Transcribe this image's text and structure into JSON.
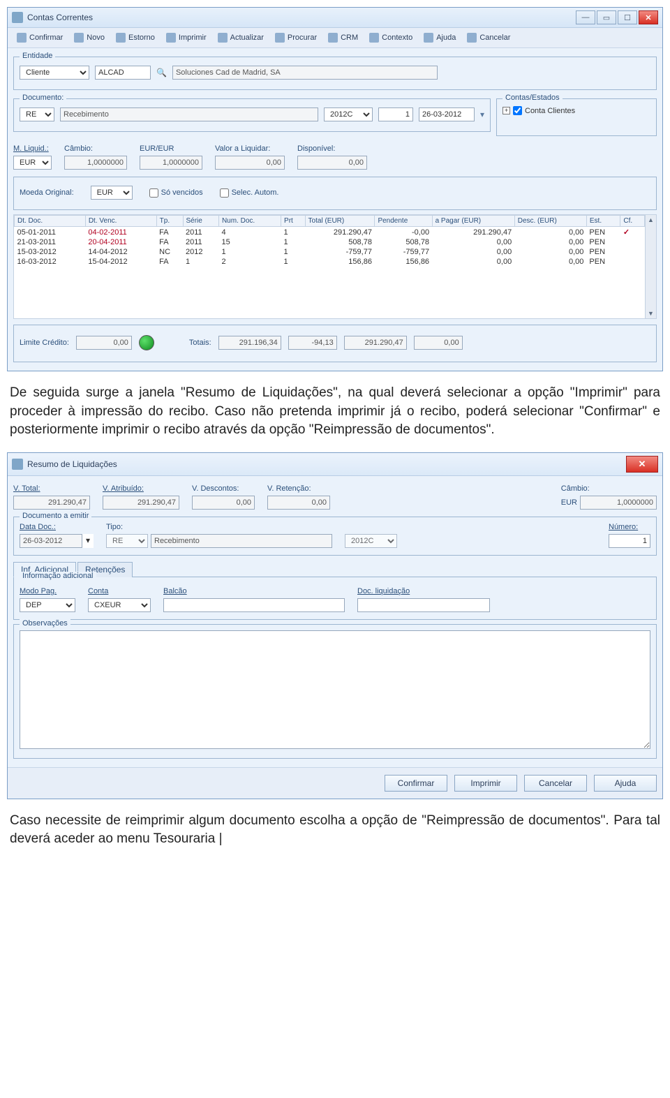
{
  "win1": {
    "title": "Contas Correntes",
    "toolbar": [
      {
        "icon": "confirm-icon",
        "label": "Confirmar"
      },
      {
        "icon": "new-icon",
        "label": "Novo"
      },
      {
        "icon": "estorno-icon",
        "label": "Estorno"
      },
      {
        "icon": "print-icon",
        "label": "Imprimir"
      },
      {
        "icon": "refresh-icon",
        "label": "Actualizar"
      },
      {
        "icon": "search-icon",
        "label": "Procurar"
      },
      {
        "icon": "crm-icon",
        "label": "CRM"
      },
      {
        "icon": "context-icon",
        "label": "Contexto"
      },
      {
        "icon": "help-icon",
        "label": "Ajuda"
      },
      {
        "icon": "cancel-icon",
        "label": "Cancelar"
      }
    ],
    "entidade": {
      "legend": "Entidade",
      "tipo": "Cliente",
      "codigo": "ALCAD",
      "nome": "Soluciones Cad de Madrid, SA"
    },
    "documento": {
      "legend": "Documento:",
      "tipo": "RE",
      "desc": "Recebimento",
      "periodo": "2012C",
      "num": "1",
      "data": "26-03-2012"
    },
    "contas_estados": {
      "legend": "Contas/Estados",
      "item": "Conta Clientes"
    },
    "liquid": {
      "mliquid_lbl": "M. Liquid.:",
      "moeda": "EUR",
      "cambio_lbl": "Câmbio:",
      "cambio": "1,0000000",
      "eur_eur_lbl": "EUR/EUR",
      "eur_eur": "1,0000000",
      "valor_lbl": "Valor a Liquidar:",
      "valor": "0,00",
      "disp_lbl": "Disponível:",
      "disp": "0,00"
    },
    "filtros": {
      "moeda_orig_lbl": "Moeda Original:",
      "moeda_orig": "EUR",
      "so_venc": "Só vencidos",
      "selec_autom": "Selec. Autom."
    },
    "grid": {
      "headers": [
        "Dt. Doc.",
        "Dt. Venc.",
        "Tp.",
        "Série",
        "Num. Doc.",
        "Prt",
        "Total (EUR)",
        "Pendente",
        "a Pagar (EUR)",
        "Desc. (EUR)",
        "Est.",
        "Cf."
      ],
      "rows": [
        {
          "c": [
            "05-01-2011",
            "04-02-2011",
            "FA",
            "2011",
            "4",
            "1",
            "291.290,47",
            "-0,00",
            "291.290,47",
            "0,00",
            "PEN",
            "✓"
          ],
          "venc_red": true,
          "cf": true
        },
        {
          "c": [
            "21-03-2011",
            "20-04-2011",
            "FA",
            "2011",
            "15",
            "1",
            "508,78",
            "508,78",
            "0,00",
            "0,00",
            "PEN",
            ""
          ],
          "venc_red": true
        },
        {
          "c": [
            "15-03-2012",
            "14-04-2012",
            "NC",
            "2012",
            "1",
            "1",
            "-759,77",
            "-759,77",
            "0,00",
            "0,00",
            "PEN",
            ""
          ]
        },
        {
          "c": [
            "16-03-2012",
            "15-04-2012",
            "FA",
            "1",
            "2",
            "1",
            "156,86",
            "156,86",
            "0,00",
            "0,00",
            "PEN",
            ""
          ]
        }
      ]
    },
    "totais": {
      "limite_lbl": "Limite Crédito:",
      "limite": "0,00",
      "totais_lbl": "Totais:",
      "t1": "291.196,34",
      "t2": "-94,13",
      "t3": "291.290,47",
      "t4": "0,00"
    }
  },
  "para1": "De seguida surge a janela \"Resumo de Liquidações\", na qual deverá selecionar a opção \"Imprimir\" para proceder à impressão do recibo. Caso não pretenda imprimir já o recibo, poderá selecionar \"Confirmar\" e posteriormente imprimir o recibo através da opção \"Reimpressão de documentos\".",
  "win2": {
    "title": "Resumo de Liquidações",
    "header": {
      "vtotal_lbl": "V. Total:",
      "vtotal": "291.290,47",
      "vatr_lbl": "V. Atribuído:",
      "vatr": "291.290,47",
      "vdesc_lbl": "V. Descontos:",
      "vdesc": "0,00",
      "vret_lbl": "V. Retenção:",
      "vret": "0,00",
      "cambio_lbl": "Câmbio:",
      "moeda": "EUR",
      "cambio": "1,0000000"
    },
    "doc": {
      "legend": "Documento a emitir",
      "data_lbl": "Data Doc.:",
      "data": "26-03-2012",
      "tipo_lbl": "Tipo:",
      "tipo": "RE",
      "tipo_desc": "Recebimento",
      "periodo": "2012C",
      "numero_lbl": "Número:",
      "numero": "1"
    },
    "tabs": {
      "t1": "Inf. Adicional",
      "t2": "Retenções"
    },
    "infoad": {
      "legend": "Informação adicional",
      "modo_lbl": "Modo Pag.",
      "modo": "DEP",
      "conta_lbl": "Conta",
      "conta": "CXEUR",
      "balcao_lbl": "Balcão",
      "balcao": "",
      "docliq_lbl": "Doc. liquidação",
      "docliq": ""
    },
    "obs_legend": "Observações",
    "buttons": {
      "confirmar": "Confirmar",
      "imprimir": "Imprimir",
      "cancelar": "Cancelar",
      "ajuda": "Ajuda"
    }
  },
  "para2": "Caso necessite de reimprimir algum documento escolha a opção de \"Reimpressão de documentos\". Para tal deverá aceder ao menu Tesouraria |"
}
